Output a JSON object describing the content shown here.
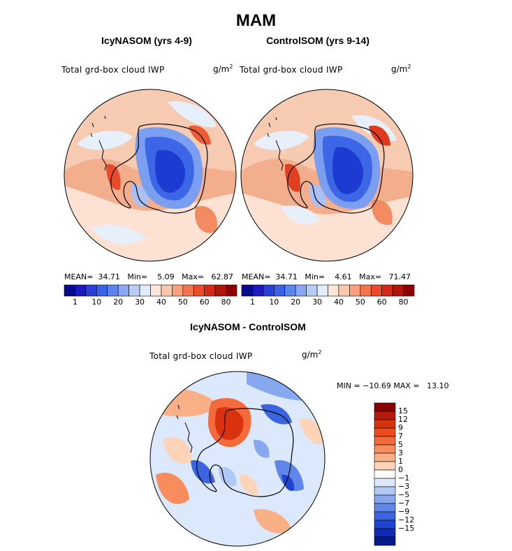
{
  "title": "MAM",
  "panels": [
    {
      "title": "IcyNASOM (yrs 4-9)",
      "variable": "Total grd-box cloud IWP",
      "units_base": "g/m",
      "units_exp": "2",
      "stats": "MEAN=  34.71   Min=    5.09   Max=   62.87"
    },
    {
      "title": "ControlSOM (yrs 9-14)",
      "variable": "Total grd-box cloud IWP",
      "units_base": "g/m",
      "units_exp": "2",
      "stats": "MEAN=  34.71   Min=    4.61   Max=   71.47"
    }
  ],
  "abs_colorbar": {
    "colors": [
      "#0a0a8c",
      "#1a1abf",
      "#2a3fd9",
      "#3a62e6",
      "#5b84ec",
      "#89a8f0",
      "#b8ccf5",
      "#e0ecfb",
      "#fde5d8",
      "#fbc8ac",
      "#f8a17c",
      "#f4744f",
      "#ee4a2a",
      "#d42a15",
      "#b01508",
      "#8b0000"
    ],
    "tick_labels": [
      "1",
      "10",
      "20",
      "30",
      "40",
      "50",
      "60",
      "80"
    ]
  },
  "diff_panel": {
    "title": "IcyNASOM - ControlSOM",
    "variable": "Total grd-box cloud IWP",
    "units_base": "g/m",
    "units_exp": "2",
    "minmax": "MIN = −10.69 MAX =   13.10"
  },
  "diff_colorbar": {
    "colors": [
      "#8b0000",
      "#b51a0a",
      "#d9320f",
      "#f04a1c",
      "#f56a3a",
      "#f88c5c",
      "#fab086",
      "#fdd4b8",
      "#ffffff",
      "#dce8fb",
      "#b0c8f5",
      "#87a7ee",
      "#5f86e8",
      "#3a64e0",
      "#1d44d2",
      "#0f2ab4",
      "#061a8c"
    ],
    "tick_labels": [
      "15",
      "12",
      "9",
      "7",
      "5",
      "3",
      "1",
      "0",
      "−1",
      "−3",
      "−5",
      "−7",
      "−9",
      "−12",
      "−15"
    ]
  }
}
